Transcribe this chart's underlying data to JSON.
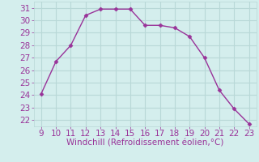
{
  "x": [
    9,
    10,
    11,
    12,
    13,
    14,
    15,
    16,
    17,
    18,
    19,
    20,
    21,
    22,
    23
  ],
  "y": [
    24.1,
    26.7,
    28.0,
    30.4,
    30.9,
    30.9,
    30.9,
    29.6,
    29.6,
    29.4,
    28.7,
    27.0,
    24.4,
    22.9,
    21.7
  ],
  "line_color": "#993399",
  "marker": "D",
  "marker_size": 2.5,
  "bg_color": "#d4eeed",
  "grid_color": "#b8d8d7",
  "xlabel": "Windchill (Refroidissement éolien,°C)",
  "xlabel_color": "#993399",
  "xlabel_fontsize": 7.5,
  "tick_fontsize": 7.5,
  "tick_color": "#993399",
  "xlim": [
    8.5,
    23.5
  ],
  "ylim": [
    21.5,
    31.5
  ],
  "yticks": [
    22,
    23,
    24,
    25,
    26,
    27,
    28,
    29,
    30,
    31
  ],
  "xticks": [
    9,
    10,
    11,
    12,
    13,
    14,
    15,
    16,
    17,
    18,
    19,
    20,
    21,
    22,
    23
  ]
}
